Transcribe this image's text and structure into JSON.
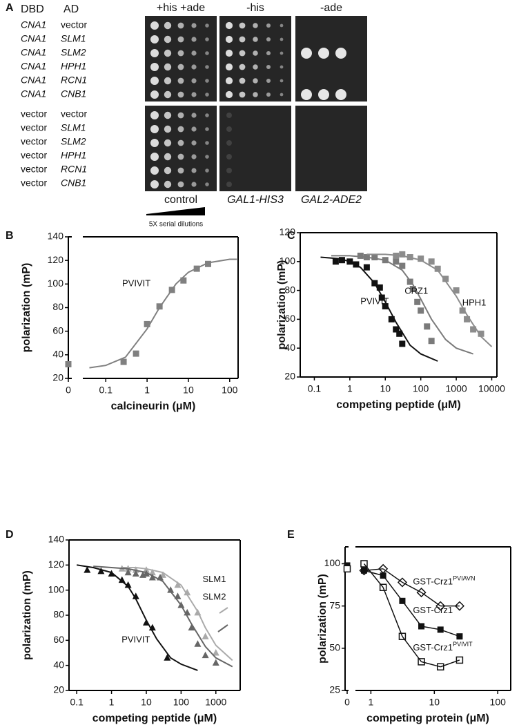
{
  "panel_a": {
    "panel": "A",
    "headers": {
      "dbd": "DBD",
      "ad": "AD"
    },
    "columns": [
      "+his +ade",
      "-his",
      "-ade"
    ],
    "rows": [
      [
        "CNA1",
        "vector"
      ],
      [
        "CNA1",
        "SLM1"
      ],
      [
        "CNA1",
        "SLM2"
      ],
      [
        "CNA1",
        "HPH1"
      ],
      [
        "CNA1",
        "RCN1"
      ],
      [
        "CNA1",
        "CNB1"
      ],
      [
        "vector",
        "vector"
      ],
      [
        "vector",
        "SLM1"
      ],
      [
        "vector",
        "SLM2"
      ],
      [
        "vector",
        "HPH1"
      ],
      [
        "vector",
        "RCN1"
      ],
      [
        "vector",
        "CNB1"
      ]
    ],
    "reporters": [
      "control",
      "GAL1-HIS3",
      "GAL2-ADE2"
    ],
    "dilution_note": "5X serial dilutions"
  },
  "chart_data": [
    {
      "type": "scatter",
      "panel": "B",
      "xlabel": "calcineurin (μM)",
      "ylabel": "polarization (mP)",
      "xscale": "log",
      "axis_break": true,
      "xlim": [
        0.03,
        160
      ],
      "xticks": [
        0,
        0.1,
        1,
        10,
        100
      ],
      "ylim": [
        20,
        140
      ],
      "yticks": [
        20,
        40,
        60,
        80,
        100,
        120,
        140
      ],
      "grid": false,
      "series": [
        {
          "name": "PVIVIT",
          "color": "#808080",
          "marker": "square",
          "x": [
            0,
            0.27,
            0.54,
            1,
            2,
            4,
            7.6,
            16,
            30
          ],
          "values": [
            32,
            34,
            41,
            66,
            81,
            95,
            103,
            113,
            117
          ],
          "fit_x": [
            0.04,
            0.1,
            0.3,
            1,
            2,
            5,
            10,
            30,
            100,
            150
          ],
          "fit_values": [
            29,
            31,
            38,
            62,
            80,
            100,
            110,
            118,
            121,
            121
          ]
        }
      ]
    },
    {
      "type": "scatter",
      "panel": "C",
      "xlabel": "competing peptide (μM)",
      "ylabel": "polarization (mP)",
      "xscale": "log",
      "axis_break": false,
      "xlim": [
        0.04,
        14000
      ],
      "xticks": [
        0.1,
        1,
        10,
        100,
        1000,
        10000
      ],
      "ylim": [
        20,
        120
      ],
      "yticks": [
        20,
        40,
        60,
        80,
        100,
        120
      ],
      "grid": false,
      "series": [
        {
          "name": "PVIVIT",
          "color": "#111111",
          "marker": "square",
          "x": [
            0.4,
            0.6,
            1,
            1.5,
            3,
            5,
            7,
            8,
            10,
            15,
            20,
            25,
            30
          ],
          "values": [
            100,
            101,
            100,
            98,
            96,
            85,
            82,
            75,
            69,
            60,
            53,
            50,
            43
          ],
          "fit_x": [
            0.15,
            0.5,
            1,
            2,
            5,
            10,
            20,
            50,
            100,
            300
          ],
          "fit_values": [
            103,
            102,
            100,
            96,
            85,
            72,
            58,
            42,
            36,
            31
          ]
        },
        {
          "name": "CRZ1",
          "color": "#7a7a7a",
          "marker": "square",
          "x": [
            2,
            3,
            5,
            10,
            20,
            30,
            50,
            60,
            80,
            100,
            150,
            200
          ],
          "values": [
            104,
            103,
            103,
            101,
            100,
            97,
            86,
            81,
            72,
            66,
            55,
            45
          ],
          "fit_x": [
            0.3,
            1,
            3,
            10,
            30,
            60,
            100,
            200,
            500,
            1000,
            3000
          ],
          "fit_values": [
            104,
            104,
            103,
            101,
            94,
            84,
            74,
            60,
            46,
            40,
            36
          ]
        },
        {
          "name": "HPH1",
          "color": "#8c8c8c",
          "marker": "square",
          "x": [
            20,
            30,
            50,
            100,
            200,
            300,
            500,
            1000,
            1500,
            2000,
            3000,
            5000
          ],
          "values": [
            104,
            105,
            103,
            102,
            100,
            95,
            88,
            80,
            66,
            60,
            53,
            50
          ],
          "fit_x": [
            3,
            10,
            30,
            100,
            300,
            1000,
            2000,
            5000,
            10000
          ],
          "fit_values": [
            105,
            105,
            104,
            101,
            94,
            76,
            63,
            48,
            41
          ]
        }
      ]
    },
    {
      "type": "scatter",
      "panel": "D",
      "xlabel": "competing peptide (μM)",
      "ylabel": "polarization (mP)",
      "xscale": "log",
      "axis_break": false,
      "xlim": [
        0.06,
        5000
      ],
      "xticks": [
        0.1,
        1,
        10,
        100,
        1000
      ],
      "ylim": [
        20,
        140
      ],
      "yticks": [
        20,
        40,
        60,
        80,
        100,
        120,
        140
      ],
      "grid": false,
      "series": [
        {
          "name": "SLM1",
          "color": "#aaaaaa",
          "marker": "triangle",
          "x": [
            2,
            3,
            5,
            10,
            15,
            30,
            80,
            150,
            300,
            500,
            1000
          ],
          "values": [
            117,
            117,
            116,
            116,
            114,
            112,
            104,
            98,
            82,
            63,
            50
          ],
          "fit_x": [
            2,
            5,
            10,
            30,
            100,
            300,
            500,
            1000,
            3000
          ],
          "fit_values": [
            118,
            118,
            117,
            114,
            104,
            83,
            70,
            56,
            44
          ]
        },
        {
          "name": "SLM2",
          "color": "#666666",
          "marker": "triangle",
          "x": [
            3,
            5,
            8,
            10,
            15,
            25,
            50,
            80,
            100,
            150,
            200,
            300,
            500,
            1000
          ],
          "values": [
            114,
            113,
            112,
            113,
            110,
            110,
            100,
            95,
            88,
            82,
            70,
            57,
            48,
            42
          ],
          "fit_x": [
            0.3,
            1,
            3,
            10,
            30,
            100,
            200,
            500,
            1000,
            3000
          ],
          "fit_values": [
            119,
            118,
            117,
            114,
            107,
            88,
            73,
            55,
            46,
            39
          ]
        },
        {
          "name": "PVIVIT",
          "color": "#111111",
          "marker": "triangle",
          "x": [
            0.2,
            0.5,
            1,
            2,
            3,
            5,
            10,
            15,
            40
          ],
          "values": [
            116,
            115,
            113,
            108,
            104,
            95,
            74,
            70,
            46
          ],
          "fit_x": [
            0.1,
            0.3,
            1,
            3,
            5,
            10,
            20,
            50,
            100,
            300
          ],
          "fit_values": [
            120,
            118,
            114,
            103,
            93,
            76,
            61,
            46,
            41,
            36
          ]
        }
      ]
    },
    {
      "type": "line",
      "panel": "E",
      "xlabel": "competing protein (μM)",
      "ylabel": "polarization (mP)",
      "xscale": "log",
      "axis_break": true,
      "xlim": [
        0.6,
        160
      ],
      "xticks": [
        0,
        1,
        10,
        100
      ],
      "ylim": [
        25,
        110
      ],
      "yticks": [
        25,
        50,
        75,
        100
      ],
      "grid": false,
      "series": [
        {
          "name": "GST-Crz1",
          "name_superscript": "PVIAVN",
          "color": "#111111",
          "marker": "diamond-open",
          "x": [
            0.78,
            1.56,
            3.13,
            6.25,
            12.5,
            25
          ],
          "values": [
            96,
            97,
            89,
            83,
            75,
            75
          ]
        },
        {
          "name": "GST-Crz1",
          "color": "#111111",
          "marker": "square",
          "x": [
            0,
            0.78,
            1.56,
            3.13,
            6.25,
            12.5,
            25
          ],
          "values": [
            99,
            96,
            93,
            78,
            63,
            61,
            57
          ]
        },
        {
          "name": "GST-Crz1",
          "name_superscript": "PVIVIT",
          "color": "#111111",
          "marker": "square-open",
          "x": [
            0,
            0.78,
            1.56,
            3.13,
            6.25,
            12.5,
            25
          ],
          "values": [
            97,
            100,
            86,
            57,
            42,
            39,
            43
          ]
        }
      ]
    }
  ]
}
